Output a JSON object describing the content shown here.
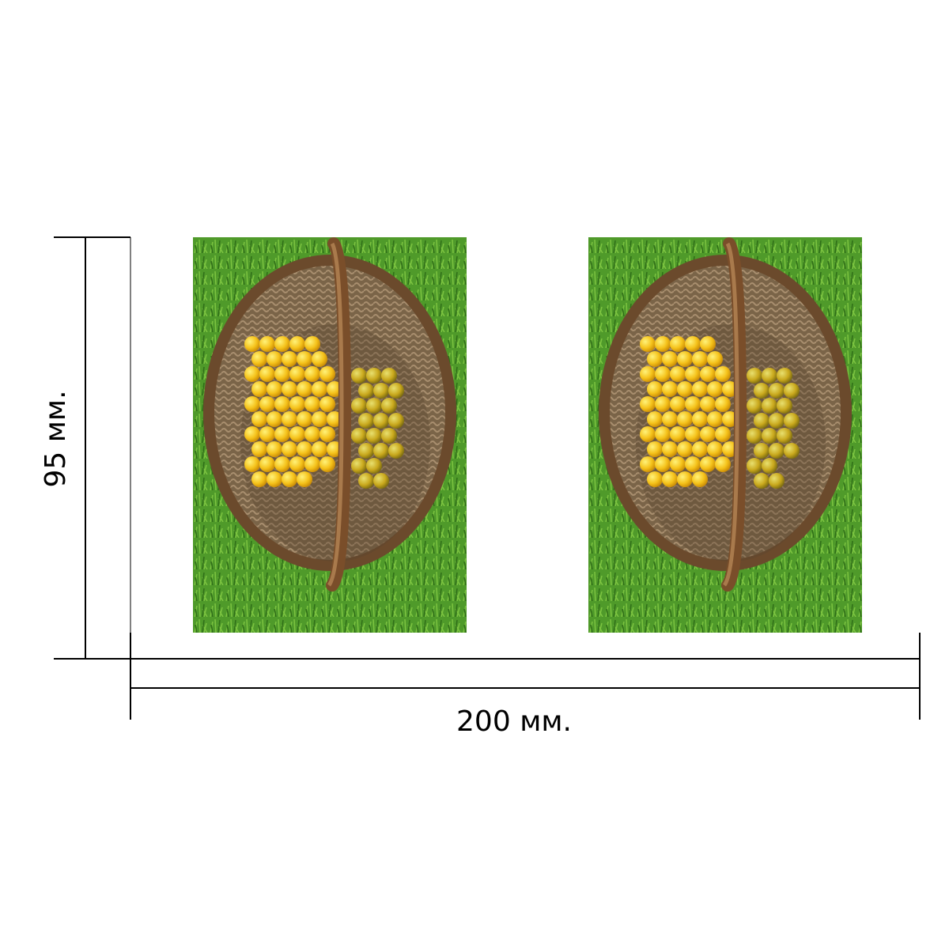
{
  "height_label": "95 мм.",
  "width_label": "200 мм."
}
